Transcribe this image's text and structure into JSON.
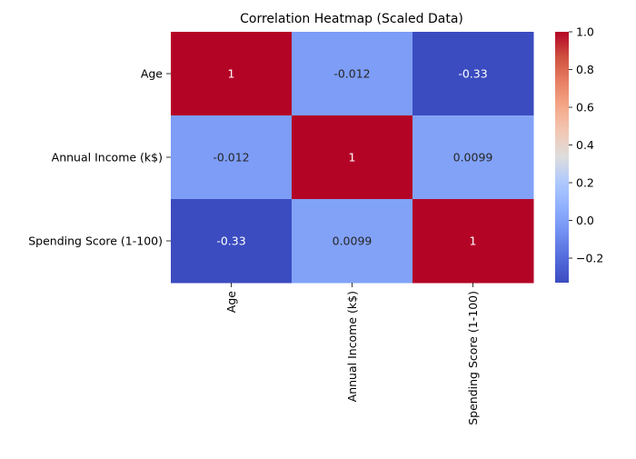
{
  "chart_data": {
    "type": "heatmap",
    "title": "Correlation Heatmap (Scaled Data)",
    "xlabel": "",
    "ylabel": "",
    "row_labels": [
      "Age",
      "Annual Income (k$)",
      "Spending Score (1-100)"
    ],
    "col_labels": [
      "Age",
      "Annual Income (k$)",
      "Spending Score (1-100)"
    ],
    "values": [
      [
        1,
        -0.012,
        -0.33
      ],
      [
        -0.012,
        1,
        0.0099
      ],
      [
        -0.33,
        0.0099,
        1
      ]
    ],
    "cell_text": [
      [
        "1",
        "-0.012",
        "-0.33"
      ],
      [
        "-0.012",
        "1",
        "0.0099"
      ],
      [
        "-0.33",
        "0.0099",
        "1"
      ]
    ],
    "colormap": "coolwarm",
    "color_range": [
      -0.33,
      1.0
    ],
    "colorbar_ticks": [
      1.0,
      0.8,
      0.6,
      0.4,
      0.2,
      0.0,
      -0.2
    ],
    "colorbar_tick_labels": [
      "1.0",
      "0.8",
      "0.6",
      "0.4",
      "0.2",
      "0.0",
      "−0.2"
    ],
    "grid": false
  }
}
